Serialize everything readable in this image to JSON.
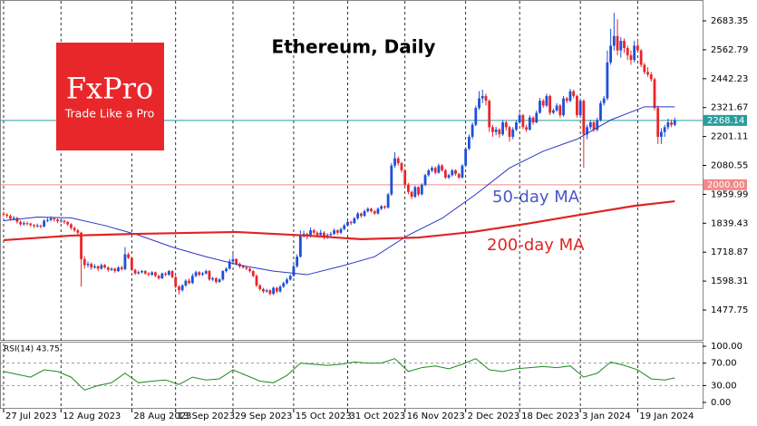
{
  "chart_data": {
    "type": "candlestick",
    "title": "Ethereum, Daily",
    "logo": {
      "brand": "FxPro",
      "tagline": "Trade Like a Pro"
    },
    "up_color": "#1f4fd8",
    "down_color": "#e8262a",
    "xlim": [
      -1.075,
      207.25
    ],
    "xticks": [
      {
        "value": 0,
        "label": "27 Jul 2023"
      },
      {
        "value": 17,
        "label": "12 Aug 2023"
      },
      {
        "value": 38,
        "label": "28 Aug 2023"
      },
      {
        "value": 51,
        "label": "13 Sep 2023"
      },
      {
        "value": 68,
        "label": "29 Sep 2023"
      },
      {
        "value": 86,
        "label": "15 Oct 2023"
      },
      {
        "value": 102,
        "label": "31 Oct 2023"
      },
      {
        "value": 119,
        "label": "16 Nov 2023"
      },
      {
        "value": 137,
        "label": "2 Dec 2023"
      },
      {
        "value": 153,
        "label": "18 Dec 2023"
      },
      {
        "value": 171,
        "label": "3 Jan 2024"
      },
      {
        "value": 188,
        "label": "19 Jan 2024"
      }
    ],
    "ylim": [
      1353.1,
      2770.3
    ],
    "yticks": [
      1477.75,
      1598.31,
      1718.87,
      1839.43,
      1959.99,
      2080.55,
      2201.11,
      2321.67,
      2442.23,
      2562.79,
      2683.35
    ],
    "price_lines": [
      {
        "value": 2268.14,
        "label": "2268.14",
        "color": "#2a9d9d"
      },
      {
        "value": 2000,
        "label": "2000.00",
        "color": "#f08a8a"
      }
    ],
    "candles": [
      [
        1880,
        1888,
        1868,
        1875
      ],
      [
        1875,
        1882,
        1862,
        1870
      ],
      [
        1870,
        1876,
        1850,
        1858
      ],
      [
        1858,
        1870,
        1852,
        1862
      ],
      [
        1862,
        1866,
        1838,
        1845
      ],
      [
        1845,
        1852,
        1828,
        1835
      ],
      [
        1835,
        1848,
        1830,
        1840
      ],
      [
        1840,
        1846,
        1830,
        1838
      ],
      [
        1838,
        1842,
        1824,
        1832
      ],
      [
        1832,
        1836,
        1820,
        1828
      ],
      [
        1828,
        1838,
        1822,
        1830
      ],
      [
        1830,
        1834,
        1818,
        1826
      ],
      [
        1826,
        1856,
        1822,
        1850
      ],
      [
        1850,
        1862,
        1844,
        1853
      ],
      [
        1853,
        1868,
        1848,
        1860
      ],
      [
        1860,
        1864,
        1846,
        1855
      ],
      [
        1855,
        1860,
        1840,
        1848
      ],
      [
        1848,
        1856,
        1842,
        1850
      ],
      [
        1850,
        1854,
        1836,
        1845
      ],
      [
        1845,
        1848,
        1828,
        1835
      ],
      [
        1835,
        1840,
        1812,
        1820
      ],
      [
        1820,
        1826,
        1802,
        1810
      ],
      [
        1810,
        1816,
        1790,
        1800
      ],
      [
        1800,
        1804,
        1575,
        1690
      ],
      [
        1690,
        1702,
        1650,
        1665
      ],
      [
        1665,
        1680,
        1655,
        1670
      ],
      [
        1670,
        1676,
        1645,
        1655
      ],
      [
        1655,
        1668,
        1650,
        1660
      ],
      [
        1660,
        1664,
        1640,
        1650
      ],
      [
        1650,
        1672,
        1646,
        1665
      ],
      [
        1665,
        1670,
        1650,
        1655
      ],
      [
        1655,
        1660,
        1638,
        1645
      ],
      [
        1645,
        1656,
        1640,
        1650
      ],
      [
        1650,
        1654,
        1632,
        1640
      ],
      [
        1640,
        1660,
        1636,
        1655
      ],
      [
        1655,
        1662,
        1642,
        1648
      ],
      [
        1648,
        1740,
        1644,
        1710
      ],
      [
        1710,
        1718,
        1690,
        1695
      ],
      [
        1695,
        1700,
        1640,
        1645
      ],
      [
        1645,
        1650,
        1624,
        1630
      ],
      [
        1630,
        1642,
        1626,
        1635
      ],
      [
        1635,
        1645,
        1630,
        1640
      ],
      [
        1640,
        1644,
        1624,
        1630
      ],
      [
        1630,
        1636,
        1618,
        1625
      ],
      [
        1625,
        1640,
        1620,
        1635
      ],
      [
        1635,
        1638,
        1614,
        1620
      ],
      [
        1620,
        1625,
        1604,
        1610
      ],
      [
        1610,
        1634,
        1606,
        1630
      ],
      [
        1630,
        1636,
        1618,
        1625
      ],
      [
        1625,
        1645,
        1620,
        1640
      ],
      [
        1640,
        1644,
        1610,
        1615
      ],
      [
        1615,
        1620,
        1568,
        1575
      ],
      [
        1575,
        1582,
        1542,
        1560
      ],
      [
        1560,
        1586,
        1554,
        1580
      ],
      [
        1580,
        1606,
        1574,
        1600
      ],
      [
        1600,
        1610,
        1584,
        1590
      ],
      [
        1590,
        1630,
        1586,
        1620
      ],
      [
        1620,
        1642,
        1614,
        1635
      ],
      [
        1635,
        1640,
        1618,
        1625
      ],
      [
        1625,
        1636,
        1620,
        1630
      ],
      [
        1630,
        1646,
        1626,
        1640
      ],
      [
        1640,
        1644,
        1600,
        1605
      ],
      [
        1605,
        1616,
        1598,
        1610
      ],
      [
        1610,
        1614,
        1588,
        1595
      ],
      [
        1595,
        1610,
        1590,
        1605
      ],
      [
        1605,
        1644,
        1600,
        1640
      ],
      [
        1640,
        1656,
        1634,
        1650
      ],
      [
        1650,
        1690,
        1646,
        1680
      ],
      [
        1680,
        1712,
        1672,
        1690
      ],
      [
        1690,
        1694,
        1664,
        1670
      ],
      [
        1670,
        1676,
        1652,
        1660
      ],
      [
        1660,
        1666,
        1650,
        1655
      ],
      [
        1655,
        1660,
        1644,
        1650
      ],
      [
        1650,
        1654,
        1634,
        1640
      ],
      [
        1640,
        1644,
        1614,
        1620
      ],
      [
        1620,
        1626,
        1574,
        1580
      ],
      [
        1580,
        1586,
        1558,
        1565
      ],
      [
        1565,
        1570,
        1548,
        1555
      ],
      [
        1555,
        1566,
        1550,
        1560
      ],
      [
        1560,
        1564,
        1538,
        1545
      ],
      [
        1545,
        1576,
        1540,
        1570
      ],
      [
        1570,
        1574,
        1548,
        1555
      ],
      [
        1555,
        1582,
        1550,
        1575
      ],
      [
        1575,
        1596,
        1570,
        1590
      ],
      [
        1590,
        1612,
        1584,
        1605
      ],
      [
        1605,
        1626,
        1600,
        1620
      ],
      [
        1620,
        1670,
        1616,
        1660
      ],
      [
        1660,
        1710,
        1654,
        1700
      ],
      [
        1700,
        1810,
        1696,
        1790
      ],
      [
        1790,
        1808,
        1780,
        1795
      ],
      [
        1795,
        1800,
        1772,
        1785
      ],
      [
        1785,
        1822,
        1780,
        1810
      ],
      [
        1810,
        1816,
        1792,
        1800
      ],
      [
        1800,
        1806,
        1780,
        1790
      ],
      [
        1790,
        1812,
        1784,
        1800
      ],
      [
        1800,
        1806,
        1772,
        1780
      ],
      [
        1780,
        1798,
        1774,
        1790
      ],
      [
        1790,
        1804,
        1784,
        1795
      ],
      [
        1795,
        1818,
        1790,
        1810
      ],
      [
        1810,
        1814,
        1792,
        1800
      ],
      [
        1800,
        1822,
        1794,
        1815
      ],
      [
        1815,
        1838,
        1810,
        1830
      ],
      [
        1830,
        1852,
        1826,
        1845
      ],
      [
        1845,
        1850,
        1832,
        1840
      ],
      [
        1840,
        1866,
        1836,
        1860
      ],
      [
        1860,
        1886,
        1854,
        1880
      ],
      [
        1880,
        1884,
        1862,
        1870
      ],
      [
        1870,
        1896,
        1866,
        1890
      ],
      [
        1890,
        1906,
        1884,
        1900
      ],
      [
        1900,
        1904,
        1884,
        1890
      ],
      [
        1890,
        1894,
        1874,
        1880
      ],
      [
        1880,
        1906,
        1876,
        1900
      ],
      [
        1900,
        1916,
        1894,
        1910
      ],
      [
        1910,
        1914,
        1898,
        1905
      ],
      [
        1905,
        1966,
        1900,
        1960
      ],
      [
        1960,
        2090,
        1954,
        2080
      ],
      [
        2080,
        2136,
        2070,
        2110
      ],
      [
        2110,
        2118,
        2080,
        2090
      ],
      [
        2090,
        2096,
        2050,
        2060
      ],
      [
        2060,
        2066,
        1990,
        2000
      ],
      [
        2000,
        2008,
        1960,
        1970
      ],
      [
        1970,
        1976,
        1940,
        1950
      ],
      [
        1950,
        1996,
        1944,
        1990
      ],
      [
        1990,
        1994,
        1952,
        1960
      ],
      [
        1960,
        2006,
        1956,
        2000
      ],
      [
        2000,
        2046,
        1994,
        2040
      ],
      [
        2040,
        2066,
        2034,
        2060
      ],
      [
        2060,
        2078,
        2052,
        2070
      ],
      [
        2070,
        2076,
        2044,
        2050
      ],
      [
        2050,
        2088,
        2046,
        2080
      ],
      [
        2080,
        2086,
        2054,
        2060
      ],
      [
        2060,
        2066,
        2024,
        2030
      ],
      [
        2030,
        2046,
        2024,
        2040
      ],
      [
        2040,
        2066,
        2034,
        2060
      ],
      [
        2060,
        2064,
        2038,
        2045
      ],
      [
        2045,
        2050,
        2024,
        2030
      ],
      [
        2030,
        2086,
        2026,
        2080
      ],
      [
        2080,
        2156,
        2074,
        2150
      ],
      [
        2150,
        2210,
        2144,
        2200
      ],
      [
        2200,
        2260,
        2190,
        2250
      ],
      [
        2250,
        2330,
        2244,
        2320
      ],
      [
        2320,
        2390,
        2312,
        2360
      ],
      [
        2360,
        2396,
        2340,
        2370
      ],
      [
        2370,
        2380,
        2330,
        2350
      ],
      [
        2350,
        2356,
        2220,
        2240
      ],
      [
        2240,
        2250,
        2200,
        2220
      ],
      [
        2220,
        2242,
        2206,
        2230
      ],
      [
        2230,
        2236,
        2196,
        2210
      ],
      [
        2210,
        2270,
        2204,
        2260
      ],
      [
        2260,
        2266,
        2226,
        2240
      ],
      [
        2240,
        2246,
        2180,
        2200
      ],
      [
        2200,
        2240,
        2190,
        2230
      ],
      [
        2230,
        2270,
        2224,
        2260
      ],
      [
        2260,
        2300,
        2254,
        2290
      ],
      [
        2290,
        2296,
        2232,
        2240
      ],
      [
        2240,
        2250,
        2220,
        2230
      ],
      [
        2230,
        2290,
        2226,
        2280
      ],
      [
        2280,
        2286,
        2250,
        2260
      ],
      [
        2260,
        2310,
        2256,
        2300
      ],
      [
        2300,
        2362,
        2296,
        2350
      ],
      [
        2350,
        2358,
        2320,
        2330
      ],
      [
        2330,
        2380,
        2324,
        2370
      ],
      [
        2370,
        2376,
        2290,
        2300
      ],
      [
        2300,
        2318,
        2294,
        2310
      ],
      [
        2310,
        2340,
        2304,
        2330
      ],
      [
        2330,
        2336,
        2280,
        2290
      ],
      [
        2290,
        2370,
        2284,
        2360
      ],
      [
        2360,
        2366,
        2340,
        2350
      ],
      [
        2350,
        2400,
        2344,
        2390
      ],
      [
        2390,
        2396,
        2360,
        2370
      ],
      [
        2370,
        2376,
        2280,
        2290
      ],
      [
        2290,
        2360,
        2284,
        2350
      ],
      [
        2350,
        2356,
        2070,
        2210
      ],
      [
        2210,
        2250,
        2190,
        2240
      ],
      [
        2240,
        2270,
        2230,
        2260
      ],
      [
        2260,
        2266,
        2220,
        2230
      ],
      [
        2230,
        2280,
        2222,
        2270
      ],
      [
        2270,
        2350,
        2264,
        2340
      ],
      [
        2340,
        2370,
        2330,
        2360
      ],
      [
        2360,
        2560,
        2352,
        2510
      ],
      [
        2510,
        2650,
        2500,
        2580
      ],
      [
        2580,
        2717,
        2560,
        2620
      ],
      [
        2620,
        2690,
        2540,
        2560
      ],
      [
        2560,
        2616,
        2530,
        2600
      ],
      [
        2600,
        2610,
        2550,
        2570
      ],
      [
        2570,
        2580,
        2520,
        2540
      ],
      [
        2540,
        2560,
        2500,
        2520
      ],
      [
        2520,
        2600,
        2510,
        2580
      ],
      [
        2580,
        2606,
        2550,
        2560
      ],
      [
        2560,
        2566,
        2490,
        2500
      ],
      [
        2500,
        2508,
        2460,
        2470
      ],
      [
        2470,
        2490,
        2450,
        2460
      ],
      [
        2460,
        2470,
        2430,
        2440
      ],
      [
        2440,
        2446,
        2310,
        2320
      ],
      [
        2320,
        2330,
        2170,
        2200
      ],
      [
        2200,
        2236,
        2170,
        2220
      ],
      [
        2220,
        2250,
        2200,
        2240
      ],
      [
        2240,
        2276,
        2230,
        2260
      ],
      [
        2260,
        2272,
        2240,
        2250
      ],
      [
        2250,
        2280,
        2244,
        2268.14
      ]
    ],
    "series": [
      {
        "name": "50-day MA",
        "color": "#2b35c8",
        "width": 1,
        "x": [
          0,
          10,
          20,
          30,
          40,
          50,
          60,
          70,
          80,
          90,
          100,
          110,
          120,
          130,
          140,
          150,
          160,
          170,
          180,
          190,
          199
        ],
        "values": [
          1850,
          1865,
          1862,
          1830,
          1790,
          1740,
          1700,
          1665,
          1640,
          1625,
          1660,
          1700,
          1790,
          1860,
          1960,
          2070,
          2140,
          2190,
          2270,
          2325,
          2325
        ]
      },
      {
        "name": "200-day MA",
        "color": "#e02424",
        "width": 2.2,
        "x": [
          0,
          20,
          39,
          69,
          90,
          106,
          123,
          139,
          155,
          171,
          187,
          199
        ],
        "values": [
          1769,
          1788,
          1795,
          1803,
          1788,
          1773,
          1780,
          1803,
          1837,
          1875,
          1912,
          1931
        ]
      }
    ],
    "rsi": {
      "title": "RSI(14) 43.75",
      "color": "#1f8a1f",
      "ylim": [
        -11.3,
        108.1
      ],
      "yticks": [
        {
          "value": 0,
          "label": "0.00"
        },
        {
          "value": 30,
          "label": "30.00"
        },
        {
          "value": 70,
          "label": "70.00"
        },
        {
          "value": 100,
          "label": "100.00"
        }
      ],
      "levels": [
        30,
        70
      ],
      "x": [
        0,
        4,
        8,
        12,
        16,
        20,
        24,
        28,
        32,
        36,
        40,
        44,
        48,
        52,
        56,
        60,
        64,
        68,
        72,
        76,
        80,
        84,
        88,
        92,
        96,
        100,
        104,
        108,
        112,
        116,
        120,
        124,
        128,
        132,
        136,
        140,
        144,
        148,
        152,
        156,
        160,
        164,
        168,
        172,
        176,
        180,
        184,
        188,
        192,
        196,
        199
      ],
      "values": [
        55,
        50,
        45,
        58,
        55,
        45,
        22,
        30,
        35,
        52,
        35,
        38,
        40,
        32,
        45,
        40,
        42,
        58,
        48,
        38,
        35,
        48,
        70,
        68,
        66,
        68,
        72,
        70,
        70,
        78,
        55,
        62,
        65,
        60,
        68,
        78,
        58,
        55,
        60,
        62,
        64,
        62,
        65,
        45,
        52,
        72,
        66,
        58,
        42,
        40,
        43.75
      ]
    }
  }
}
